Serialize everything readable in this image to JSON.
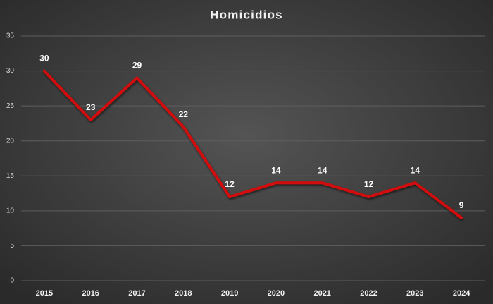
{
  "chart_data": {
    "type": "line",
    "title": "Homicidios",
    "categories": [
      "2015",
      "2016",
      "2017",
      "2018",
      "2019",
      "2020",
      "2021",
      "2022",
      "2023",
      "2024"
    ],
    "series": [
      {
        "name": "Homicidios",
        "color": "#d10b0b",
        "values": [
          30,
          23,
          29,
          22,
          12,
          14,
          14,
          12,
          14,
          9
        ]
      }
    ],
    "ylim": [
      0,
      35
    ],
    "yticks": [
      0,
      5,
      10,
      15,
      20,
      25,
      30,
      35
    ],
    "grid": true,
    "data_labels": true
  }
}
